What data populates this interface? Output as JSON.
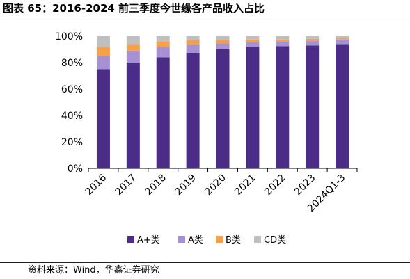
{
  "title": "图表 65：2016-2024 前三季度今世缘各产品收入占比",
  "source": "资料来源：Wind，华鑫证券研究",
  "chart_data": {
    "type": "bar",
    "stacked": true,
    "categories": [
      "2016",
      "2017",
      "2018",
      "2019",
      "2020",
      "2021",
      "2022",
      "2023",
      "2024Q1-3"
    ],
    "series": [
      {
        "name": "A+类",
        "color": "#4b2c87",
        "values": [
          75,
          80,
          84,
          87.5,
          90,
          92,
          92.5,
          93,
          94
        ]
      },
      {
        "name": "A类",
        "color": "#a691d4",
        "values": [
          10,
          9,
          8,
          6.5,
          4.5,
          3.5,
          3.5,
          3.5,
          3.5
        ]
      },
      {
        "name": "B类",
        "color": "#f7a04a",
        "values": [
          7,
          5,
          4,
          3,
          2.5,
          2,
          1.5,
          1.5,
          1
        ]
      },
      {
        "name": "CD类",
        "color": "#bfbfbf",
        "values": [
          8,
          6,
          4,
          3,
          3,
          2.5,
          2.5,
          2,
          1.5
        ]
      }
    ],
    "ylim": [
      0,
      100
    ],
    "yticks": [
      "0%",
      "20%",
      "40%",
      "60%",
      "80%",
      "100%"
    ],
    "grid": false,
    "legend": "bottom-center"
  }
}
